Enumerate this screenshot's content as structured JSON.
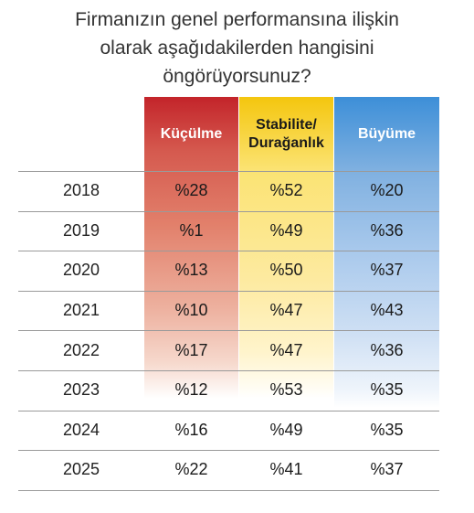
{
  "title_lines": [
    "Firmanızın genel performansına ilişkin",
    "olarak aşağıdakilerden hangisini",
    "öngörüyorsunuz?"
  ],
  "colors": {
    "kuculme": "#c3242a",
    "stabilite": "#f4c60e",
    "buyume": "#3d8fd8"
  },
  "chart_data": {
    "type": "table",
    "columns": [
      "Küçülme",
      "Stabilite/ Durağanlık",
      "Büyüme"
    ],
    "header_lines": [
      [
        "Küçülme"
      ],
      [
        "Stabilite/",
        "Durağanlık"
      ],
      [
        "Büyüme"
      ]
    ],
    "rows": [
      {
        "year": "2018",
        "values": [
          28,
          52,
          20
        ],
        "labels": [
          "%28",
          "%52",
          "%20"
        ]
      },
      {
        "year": "2019",
        "values": [
          1,
          49,
          36
        ],
        "labels": [
          "%1",
          "%49",
          "%36"
        ]
      },
      {
        "year": "2020",
        "values": [
          13,
          50,
          37
        ],
        "labels": [
          "%13",
          "%50",
          "%37"
        ]
      },
      {
        "year": "2021",
        "values": [
          10,
          47,
          43
        ],
        "labels": [
          "%10",
          "%47",
          "%43"
        ]
      },
      {
        "year": "2022",
        "values": [
          17,
          47,
          36
        ],
        "labels": [
          "%17",
          "%47",
          "%36"
        ]
      },
      {
        "year": "2023",
        "values": [
          12,
          53,
          35
        ],
        "labels": [
          "%12",
          "%53",
          "%35"
        ]
      },
      {
        "year": "2024",
        "values": [
          16,
          49,
          35
        ],
        "labels": [
          "%16",
          "%49",
          "%35"
        ]
      },
      {
        "year": "2025",
        "values": [
          22,
          41,
          37
        ],
        "labels": [
          "%22",
          "%41",
          "%37"
        ]
      }
    ]
  }
}
